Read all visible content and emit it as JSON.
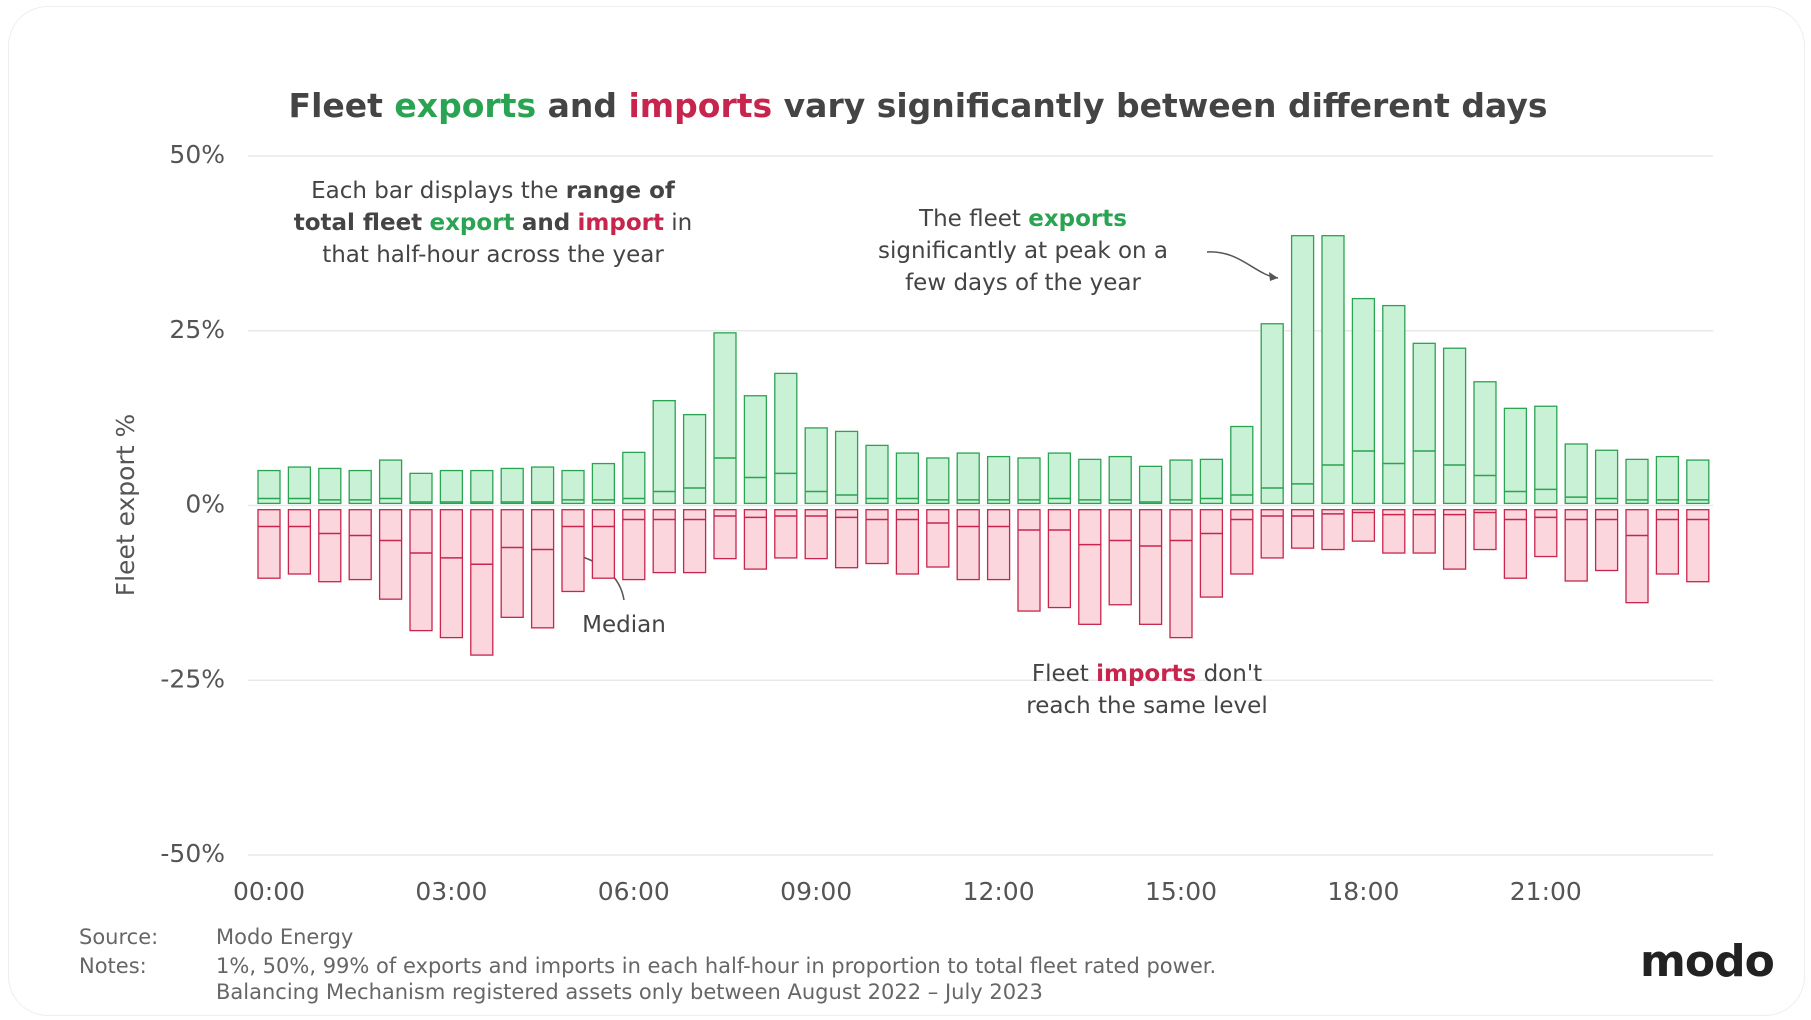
{
  "chart_data": {
    "type": "range-bar",
    "title": [
      {
        "text": "Fleet"
      },
      {
        "text": "exports",
        "color": "#2aa352"
      },
      {
        "text": "and"
      },
      {
        "text": "imports",
        "color": "#c7254e"
      },
      {
        "text": "vary significantly between different days"
      }
    ],
    "y_label": "Fleet export %",
    "ylim": [
      -50,
      50
    ],
    "yticks": [
      {
        "value": -50,
        "label": "-50%"
      },
      {
        "value": -25,
        "label": "-25%"
      },
      {
        "value": 0,
        "label": "0%"
      },
      {
        "value": 25,
        "label": "25%"
      },
      {
        "value": 50,
        "label": "50%"
      }
    ],
    "grid": true,
    "categories": [
      "00:00",
      null,
      null,
      null,
      null,
      null,
      "03:00",
      null,
      null,
      null,
      null,
      null,
      "06:00",
      null,
      null,
      null,
      null,
      null,
      "09:00",
      null,
      null,
      null,
      null,
      null,
      "12:00",
      null,
      null,
      null,
      null,
      null,
      "15:00",
      null,
      null,
      null,
      null,
      null,
      "18:00",
      null,
      null,
      null,
      null,
      null,
      "21:00",
      null,
      null,
      null,
      null,
      null
    ],
    "series": [
      {
        "color": "#2aa352",
        "fill": "#c9f1d5",
        "low": [
          0.3,
          0.3,
          0.3,
          0.3,
          0.3,
          0.3,
          0.3,
          0.3,
          0.3,
          0.3,
          0.3,
          0.3,
          0.3,
          0.3,
          0.3,
          0.3,
          0.3,
          0.3,
          0.3,
          0.3,
          0.3,
          0.3,
          0.3,
          0.3,
          0.3,
          0.3,
          0.3,
          0.3,
          0.3,
          0.3,
          0.3,
          0.3,
          0.3,
          0.3,
          0.3,
          0.3,
          0.3,
          0.3,
          0.3,
          0.3,
          0.3,
          0.3,
          0.3,
          0.3,
          0.3,
          0.3,
          0.3,
          0.3
        ],
        "median": [
          1,
          1,
          0.8,
          0.8,
          1,
          0.5,
          0.5,
          0.5,
          0.5,
          0.5,
          0.8,
          0.8,
          1,
          2,
          2.5,
          6.8,
          4,
          4.6,
          2,
          1.5,
          1,
          1,
          0.8,
          0.8,
          0.8,
          0.8,
          1,
          0.8,
          0.8,
          0.5,
          0.8,
          1,
          1.5,
          2.5,
          3.1,
          5.8,
          7.8,
          6,
          7.8,
          5.8,
          4.3,
          2,
          2.3,
          1.2,
          1,
          0.8,
          0.8,
          0.8
        ],
        "high": [
          5,
          5.5,
          5.3,
          5,
          6.5,
          4.6,
          5,
          5,
          5.3,
          5.5,
          5,
          6,
          7.6,
          15,
          13,
          24.7,
          15.7,
          18.9,
          11.1,
          10.6,
          8.6,
          7.5,
          6.8,
          7.5,
          7,
          6.8,
          7.5,
          6.6,
          7,
          5.6,
          6.5,
          6.6,
          11.3,
          26,
          38.6,
          38.6,
          29.6,
          28.6,
          23.2,
          22.5,
          17.7,
          13.9,
          14.2,
          8.8,
          7.9,
          6.6,
          7,
          6.5
        ]
      },
      {
        "color": "#c7254e",
        "fill": "#fbd6dd",
        "low": [
          -10.4,
          -9.8,
          -10.9,
          -10.6,
          -13.4,
          -17.9,
          -18.9,
          -21.4,
          -16,
          -17.5,
          -12.3,
          -10.4,
          -10.6,
          -9.6,
          -9.6,
          -7.6,
          -9.1,
          -7.5,
          -7.6,
          -8.9,
          -8.3,
          -9.8,
          -8.8,
          -10.6,
          -10.6,
          -15.1,
          -14.6,
          -17,
          -14.2,
          -17,
          -18.9,
          -13.1,
          -9.8,
          -7.5,
          -6.1,
          -6.3,
          -5.1,
          -6.8,
          -6.8,
          -9.1,
          -6.3,
          -10.4,
          -7.3,
          -10.8,
          -9.3,
          -13.9,
          -9.8,
          -10.9
        ],
        "median": [
          -3,
          -3,
          -4,
          -4.3,
          -5,
          -6.8,
          -7.5,
          -8.4,
          -6,
          -6.3,
          -3,
          -3,
          -2,
          -2,
          -2,
          -1.5,
          -1.7,
          -1.5,
          -1.5,
          -1.7,
          -2,
          -2,
          -2.5,
          -3,
          -3,
          -3.5,
          -3.5,
          -5.6,
          -5,
          -5.8,
          -5,
          -4,
          -2,
          -1.5,
          -1.5,
          -1.2,
          -1,
          -1.3,
          -1.3,
          -1.3,
          -1,
          -2,
          -1.7,
          -2,
          -2,
          -4.3,
          -2,
          -2
        ],
        "high": [
          -0.6,
          -0.6,
          -0.6,
          -0.6,
          -0.6,
          -0.6,
          -0.6,
          -0.6,
          -0.6,
          -0.6,
          -0.6,
          -0.6,
          -0.6,
          -0.6,
          -0.6,
          -0.6,
          -0.6,
          -0.6,
          -0.6,
          -0.6,
          -0.6,
          -0.6,
          -0.6,
          -0.6,
          -0.6,
          -0.6,
          -0.6,
          -0.6,
          -0.6,
          -0.6,
          -0.6,
          -0.6,
          -0.6,
          -0.6,
          -0.6,
          -0.6,
          -0.6,
          -0.6,
          -0.6,
          -0.6,
          -0.6,
          -0.6,
          -0.6,
          -0.6,
          -0.6,
          -0.6,
          -0.6,
          -0.6
        ]
      }
    ],
    "annotations": [
      {
        "lines": [
          [
            {
              "text": "Each bar displays the"
            },
            {
              "text": "range of",
              "bold": true
            }
          ],
          [
            {
              "text": "total fleet",
              "bold": true
            },
            {
              "text": "export",
              "bold": true,
              "color": "#2aa352"
            },
            {
              "text": "and",
              "bold": true
            },
            {
              "text": "import",
              "bold": true,
              "color": "#c7254e"
            },
            {
              "text": "in"
            }
          ],
          [
            {
              "text": "that half-hour across the year"
            }
          ]
        ]
      },
      {
        "lines": [
          [
            {
              "text": "The fleet"
            },
            {
              "text": "exports",
              "bold": true,
              "color": "#2aa352"
            }
          ],
          [
            {
              "text": "significantly at peak on a"
            }
          ],
          [
            {
              "text": "few days of the year"
            }
          ]
        ]
      },
      {
        "lines": [
          [
            {
              "text": "Median"
            }
          ]
        ]
      },
      {
        "lines": [
          [
            {
              "text": "Fleet"
            },
            {
              "text": "imports",
              "bold": true,
              "color": "#c7254e"
            },
            {
              "text": "don't"
            }
          ],
          [
            {
              "text": "reach the same level"
            }
          ]
        ]
      }
    ],
    "source_label": "Source:",
    "source": "Modo Energy",
    "notes_label": "Notes:",
    "notes": [
      "1%, 50%, 99% of exports and imports in each half-hour in proportion to total fleet rated power.",
      "Balancing Mechanism registered assets only between August 2022 – July 2023"
    ],
    "logo": "modo"
  }
}
